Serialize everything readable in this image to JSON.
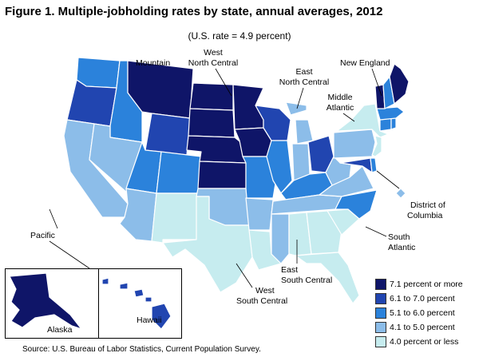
{
  "title": "Figure 1. Multiple-jobholding rates by state, annual averages, 2012",
  "subtitle": "(U.S. rate = 4.9 percent)",
  "colors": {
    "c1": "#0f1568",
    "c2": "#2145b0",
    "c3": "#2b82db",
    "c4": "#8cbde9",
    "c5": "#c6ecef"
  },
  "legend": [
    {
      "key": "c1",
      "label": "7.1 percent or more"
    },
    {
      "key": "c2",
      "label": "6.1 to 7.0 percent"
    },
    {
      "key": "c3",
      "label": "5.1 to 6.0 percent"
    },
    {
      "key": "c4",
      "label": "4.1 to 5.0 percent"
    },
    {
      "key": "c5",
      "label": "4.0 percent or less"
    }
  ],
  "regions": {
    "mountain": "Mountain",
    "wnc_line1": "West",
    "wnc_line2": "North Central",
    "enc_line1": "East",
    "enc_line2": "North Central",
    "new_england": "New England",
    "ma_line1": "Middle",
    "ma_line2": "Atlantic",
    "pacific": "Pacific",
    "dc_line1": "District of",
    "dc_line2": "Columbia",
    "sa_line1": "South",
    "sa_line2": "Atlantic",
    "esc_line1": "East",
    "esc_line2": "South Central",
    "wsc_line1": "West",
    "wsc_line2": "South Central"
  },
  "insets": {
    "alaska": "Alaska",
    "hawaii": "Hawaii"
  },
  "states": {
    "WA": "c3",
    "OR": "c2",
    "CA": "c4",
    "ID": "c3",
    "NV": "c4",
    "MT": "c1",
    "WY": "c2",
    "UT": "c3",
    "CO": "c3",
    "AZ": "c4",
    "NM": "c5",
    "ND": "c1",
    "SD": "c1",
    "NE": "c1",
    "KS": "c1",
    "MN": "c1",
    "IA": "c1",
    "MO": "c3",
    "WI": "c2",
    "IL": "c3",
    "MI": "c4",
    "IN": "c4",
    "OH": "c2",
    "KY": "c3",
    "TN": "c4",
    "OK": "c4",
    "TX": "c5",
    "AR": "c4",
    "LA": "c5",
    "MS": "c4",
    "AL": "c5",
    "GA": "c5",
    "FL": "c5",
    "SC": "c5",
    "NC": "c3",
    "VA": "c4",
    "WV": "c4",
    "MD": "c2",
    "DE": "c3",
    "DC": "c4",
    "PA": "c4",
    "NY": "c5",
    "NJ": "c5",
    "CT": "c3",
    "RI": "c3",
    "MA": "c3",
    "VT": "c1",
    "NH": "c3",
    "ME": "c1",
    "AK": "c1",
    "HI": "c2"
  },
  "source": "Source: U.S. Bureau of Labor Statistics, Current Population Survey."
}
